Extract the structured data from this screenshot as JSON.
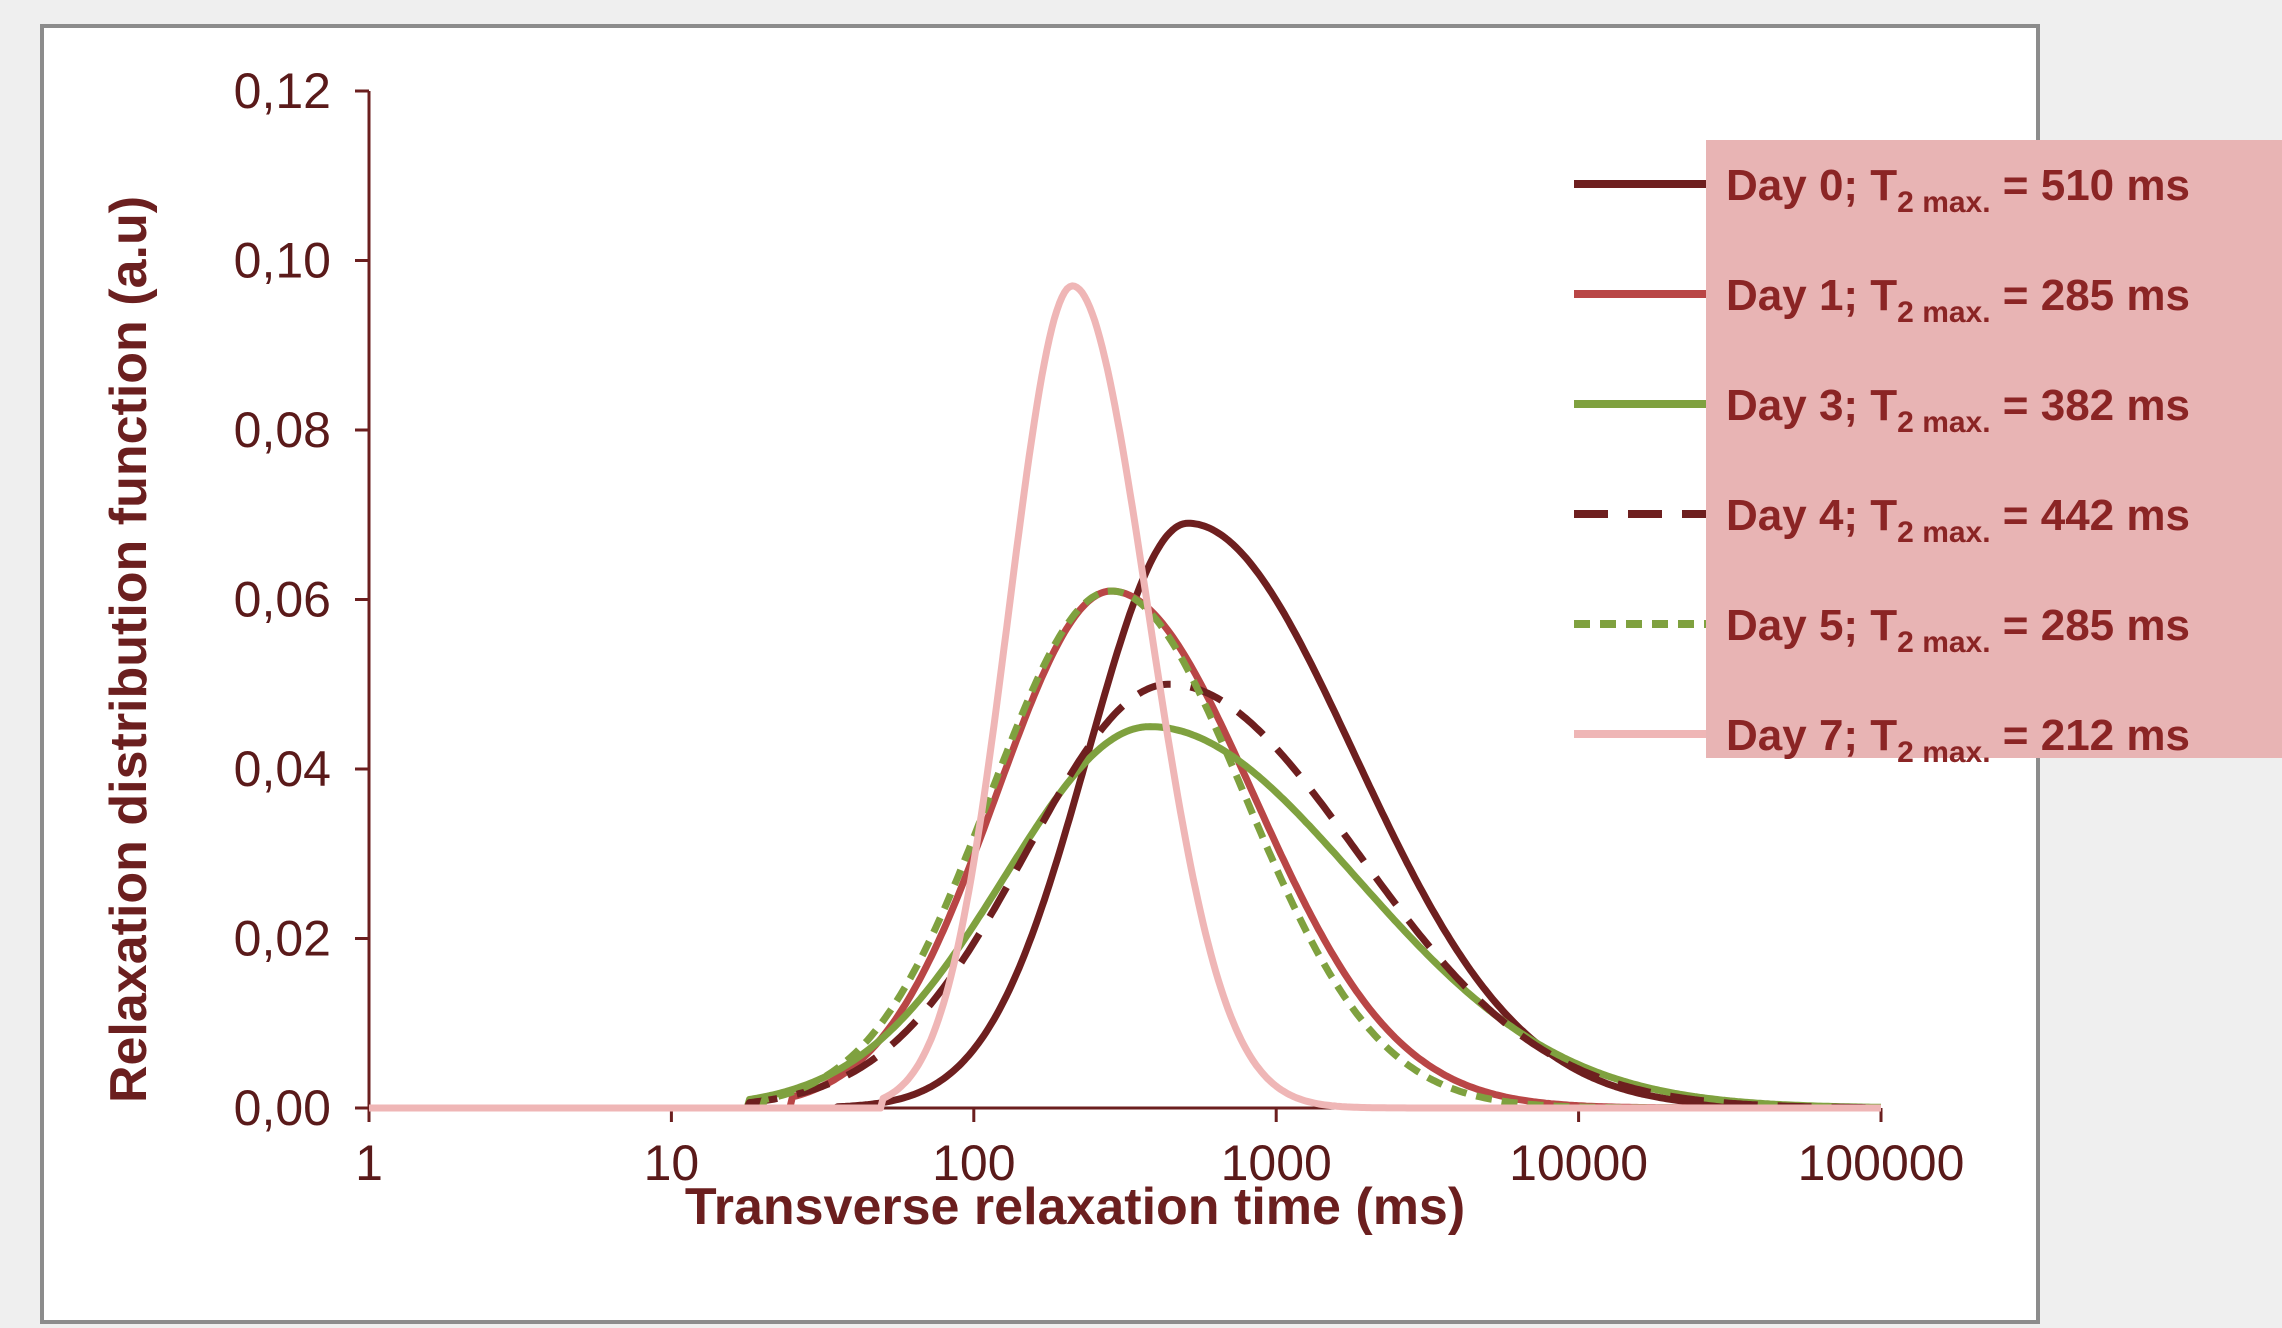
{
  "chart_data": {
    "type": "line",
    "xlabel": "Transverse relaxation time (ms)",
    "ylabel": "Relaxation distribution function (a.u)",
    "xscale": "log",
    "xlim": [
      1,
      100000
    ],
    "ylim": [
      0,
      0.12
    ],
    "x_ticks": [
      "1",
      "10",
      "100",
      "1000",
      "10000",
      "100000"
    ],
    "y_ticks": [
      "0,00",
      "0,02",
      "0,04",
      "0,06",
      "0,08",
      "0,10",
      "0,12"
    ],
    "grid": false,
    "legend_position": "top-right",
    "series": [
      {
        "name_prefix": "Day 0; T",
        "name_sub": "2 max.",
        "name_suffix": " = 510 ms",
        "color": "#6e1f1f",
        "dash": "solid",
        "peak_x": 510,
        "peak_y": 0.069,
        "sigma_left": 0.33,
        "sigma_right": 0.55,
        "x_min": 35
      },
      {
        "name_prefix": "Day 1; T",
        "name_sub": "2 max.",
        "name_suffix": " = 285 ms",
        "color": "#b94646",
        "dash": "solid",
        "peak_x": 285,
        "peak_y": 0.061,
        "sigma_left": 0.38,
        "sigma_right": 0.47,
        "x_min": 25
      },
      {
        "name_prefix": "Day 3; T",
        "name_sub": "2 max.",
        "name_suffix": " = 382 ms",
        "color": "#7fa13f",
        "dash": "solid",
        "peak_x": 382,
        "peak_y": 0.045,
        "sigma_left": 0.48,
        "sigma_right": 0.68,
        "x_min": 18
      },
      {
        "name_prefix": "Day 4; T",
        "name_sub": "2 max.",
        "name_suffix": " = 442 ms",
        "color": "#6e1f1f",
        "dash": "dashed",
        "peak_x": 442,
        "peak_y": 0.05,
        "sigma_left": 0.47,
        "sigma_right": 0.62,
        "x_min": 18
      },
      {
        "name_prefix": "Day 5; T",
        "name_sub": "2 max.",
        "name_suffix": " = 285 ms",
        "color": "#7fa13f",
        "dash": "dotted",
        "peak_x": 285,
        "peak_y": 0.061,
        "sigma_left": 0.4,
        "sigma_right": 0.44,
        "x_min": 20
      },
      {
        "name_prefix": "Day 7; T",
        "name_sub": "2 max.",
        "name_suffix": " = 212 ms",
        "color": "#efb6b6",
        "dash": "solid",
        "peak_x": 212,
        "peak_y": 0.097,
        "sigma_left": 0.21,
        "sigma_right": 0.25,
        "x_min": 50
      }
    ]
  },
  "colors": {
    "background": "#efefef",
    "legend_box": "#e8b4b4",
    "axis": "#6b1f1f"
  }
}
